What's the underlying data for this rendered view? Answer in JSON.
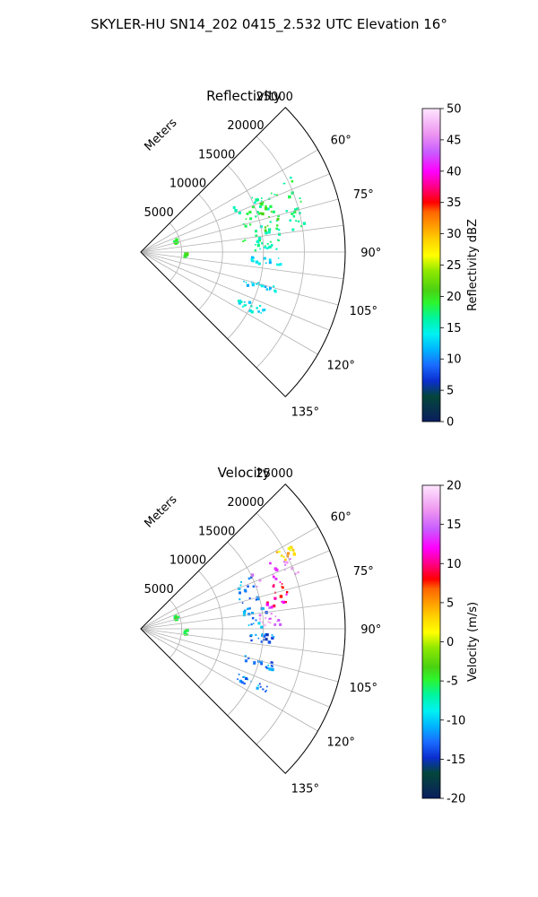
{
  "suptitle": "SKYLER-HU  SN14_202  0415_2.532 UTC Elevation 16°",
  "chart_data": [
    {
      "type": "heatmap",
      "projection": "polar-sector",
      "title": "Reflectivity",
      "radial_label": "Meters",
      "r_ticks": [
        5000,
        10000,
        15000,
        20000,
        25000
      ],
      "r_range": [
        0,
        25000
      ],
      "theta_range_deg": [
        45,
        135
      ],
      "theta_ticks": [
        60,
        75,
        90,
        105,
        120,
        135
      ],
      "theta_tick_labels": [
        "60°",
        "75°",
        "90°",
        "105°",
        "120°",
        "135°"
      ],
      "grid": true,
      "colorbar": {
        "label": "Reflectivity dBZ",
        "range": [
          0,
          50
        ],
        "ticks": [
          0,
          5,
          10,
          15,
          20,
          25,
          30,
          35,
          40,
          45,
          50
        ],
        "cmap": [
          [
            "0",
            "#0a1e5e"
          ],
          [
            "0.08",
            "#04463a"
          ],
          [
            "0.13",
            "#0b2ecf"
          ],
          [
            "0.18",
            "#1a6bff"
          ],
          [
            "0.23",
            "#00b4ff"
          ],
          [
            "0.28",
            "#00f2f2"
          ],
          [
            "0.33",
            "#00f5a0"
          ],
          [
            "0.38",
            "#2df52d"
          ],
          [
            "0.42",
            "#4ad112"
          ],
          [
            "0.48",
            "#8ee800"
          ],
          [
            "0.53",
            "#ffff00"
          ],
          [
            "0.58",
            "#ffd200"
          ],
          [
            "0.63",
            "#ff9600"
          ],
          [
            "0.67",
            "#ff6400"
          ],
          [
            "0.70",
            "#ff0000"
          ],
          [
            "0.75",
            "#ff0088"
          ],
          [
            "0.80",
            "#ff00ff"
          ],
          [
            "0.86",
            "#c85cff"
          ],
          [
            "0.92",
            "#ee96f0"
          ],
          [
            "1",
            "#ffe6ff"
          ]
        ]
      },
      "echo_regions": [
        {
          "theta": [
            63,
            84
          ],
          "r": [
            12500,
            20500
          ],
          "value": 17
        },
        {
          "theta": [
            67,
            80
          ],
          "r": [
            15000,
            17500
          ],
          "value": 20
        },
        {
          "theta": [
            84,
            89
          ],
          "r": [
            13200,
            17000
          ],
          "value": 16
        },
        {
          "theta": [
            92,
            95
          ],
          "r": [
            13000,
            17000
          ],
          "value": 13
        },
        {
          "theta": [
            104,
            107
          ],
          "r": [
            13000,
            17000
          ],
          "value": 13
        },
        {
          "theta": [
            114,
            118
          ],
          "r": [
            13000,
            17000
          ],
          "value": 14
        },
        {
          "theta": [
            90,
            96
          ],
          "r": [
            5200,
            5600
          ],
          "value": 20
        },
        {
          "theta": [
            68,
            74
          ],
          "r": [
            4200,
            4700
          ],
          "value": 20
        }
      ]
    },
    {
      "type": "heatmap",
      "projection": "polar-sector",
      "title": "Velocity",
      "radial_label": "Meters",
      "r_ticks": [
        5000,
        10000,
        15000,
        20000,
        25000
      ],
      "r_range": [
        0,
        25000
      ],
      "theta_range_deg": [
        45,
        135
      ],
      "theta_ticks": [
        60,
        75,
        90,
        105,
        120,
        135
      ],
      "theta_tick_labels": [
        "60°",
        "75°",
        "90°",
        "105°",
        "120°",
        "135°"
      ],
      "grid": true,
      "colorbar": {
        "label": "Velocity (m/s)",
        "range": [
          -20,
          20
        ],
        "ticks": [
          -20,
          -15,
          -10,
          -5,
          0,
          5,
          10,
          15,
          20
        ],
        "cmap": [
          [
            "0",
            "#0a1e5e"
          ],
          [
            "0.08",
            "#04463a"
          ],
          [
            "0.13",
            "#0b2ecf"
          ],
          [
            "0.18",
            "#1a6bff"
          ],
          [
            "0.23",
            "#00b4ff"
          ],
          [
            "0.28",
            "#00f2f2"
          ],
          [
            "0.33",
            "#00f5a0"
          ],
          [
            "0.38",
            "#2df52d"
          ],
          [
            "0.42",
            "#4ad112"
          ],
          [
            "0.48",
            "#8ee800"
          ],
          [
            "0.53",
            "#ffff00"
          ],
          [
            "0.58",
            "#ffd200"
          ],
          [
            "0.63",
            "#ff9600"
          ],
          [
            "0.67",
            "#ff6400"
          ],
          [
            "0.70",
            "#ff0000"
          ],
          [
            "0.75",
            "#ff0088"
          ],
          [
            "0.80",
            "#ff00ff"
          ],
          [
            "0.86",
            "#c85cff"
          ],
          [
            "0.92",
            "#ee96f0"
          ],
          [
            "1",
            "#ffe6ff"
          ]
        ]
      },
      "echo_regions": [
        {
          "theta": [
            76,
            89
          ],
          "r": [
            12500,
            15500
          ],
          "value": -12
        },
        {
          "theta": [
            64,
            76
          ],
          "r": [
            12500,
            15000
          ],
          "value": -12
        },
        {
          "theta": [
            62,
            70
          ],
          "r": [
            15000,
            20500
          ],
          "value": 15
        },
        {
          "theta": [
            70,
            80
          ],
          "r": [
            15500,
            18500
          ],
          "value": 10
        },
        {
          "theta": [
            80,
            88
          ],
          "r": [
            14500,
            17000
          ],
          "value": 16
        },
        {
          "theta": [
            60,
            64
          ],
          "r": [
            18500,
            21000
          ],
          "value": 3
        },
        {
          "theta": [
            92,
            96
          ],
          "r": [
            13000,
            17000
          ],
          "value": -13
        },
        {
          "theta": [
            104,
            107
          ],
          "r": [
            13000,
            17000
          ],
          "value": -12
        },
        {
          "theta": [
            114,
            118
          ],
          "r": [
            13000,
            17000
          ],
          "value": -12
        },
        {
          "theta": [
            90,
            96
          ],
          "r": [
            5200,
            5600
          ],
          "value": -5
        },
        {
          "theta": [
            68,
            74
          ],
          "r": [
            4200,
            4700
          ],
          "value": -5
        }
      ]
    }
  ]
}
